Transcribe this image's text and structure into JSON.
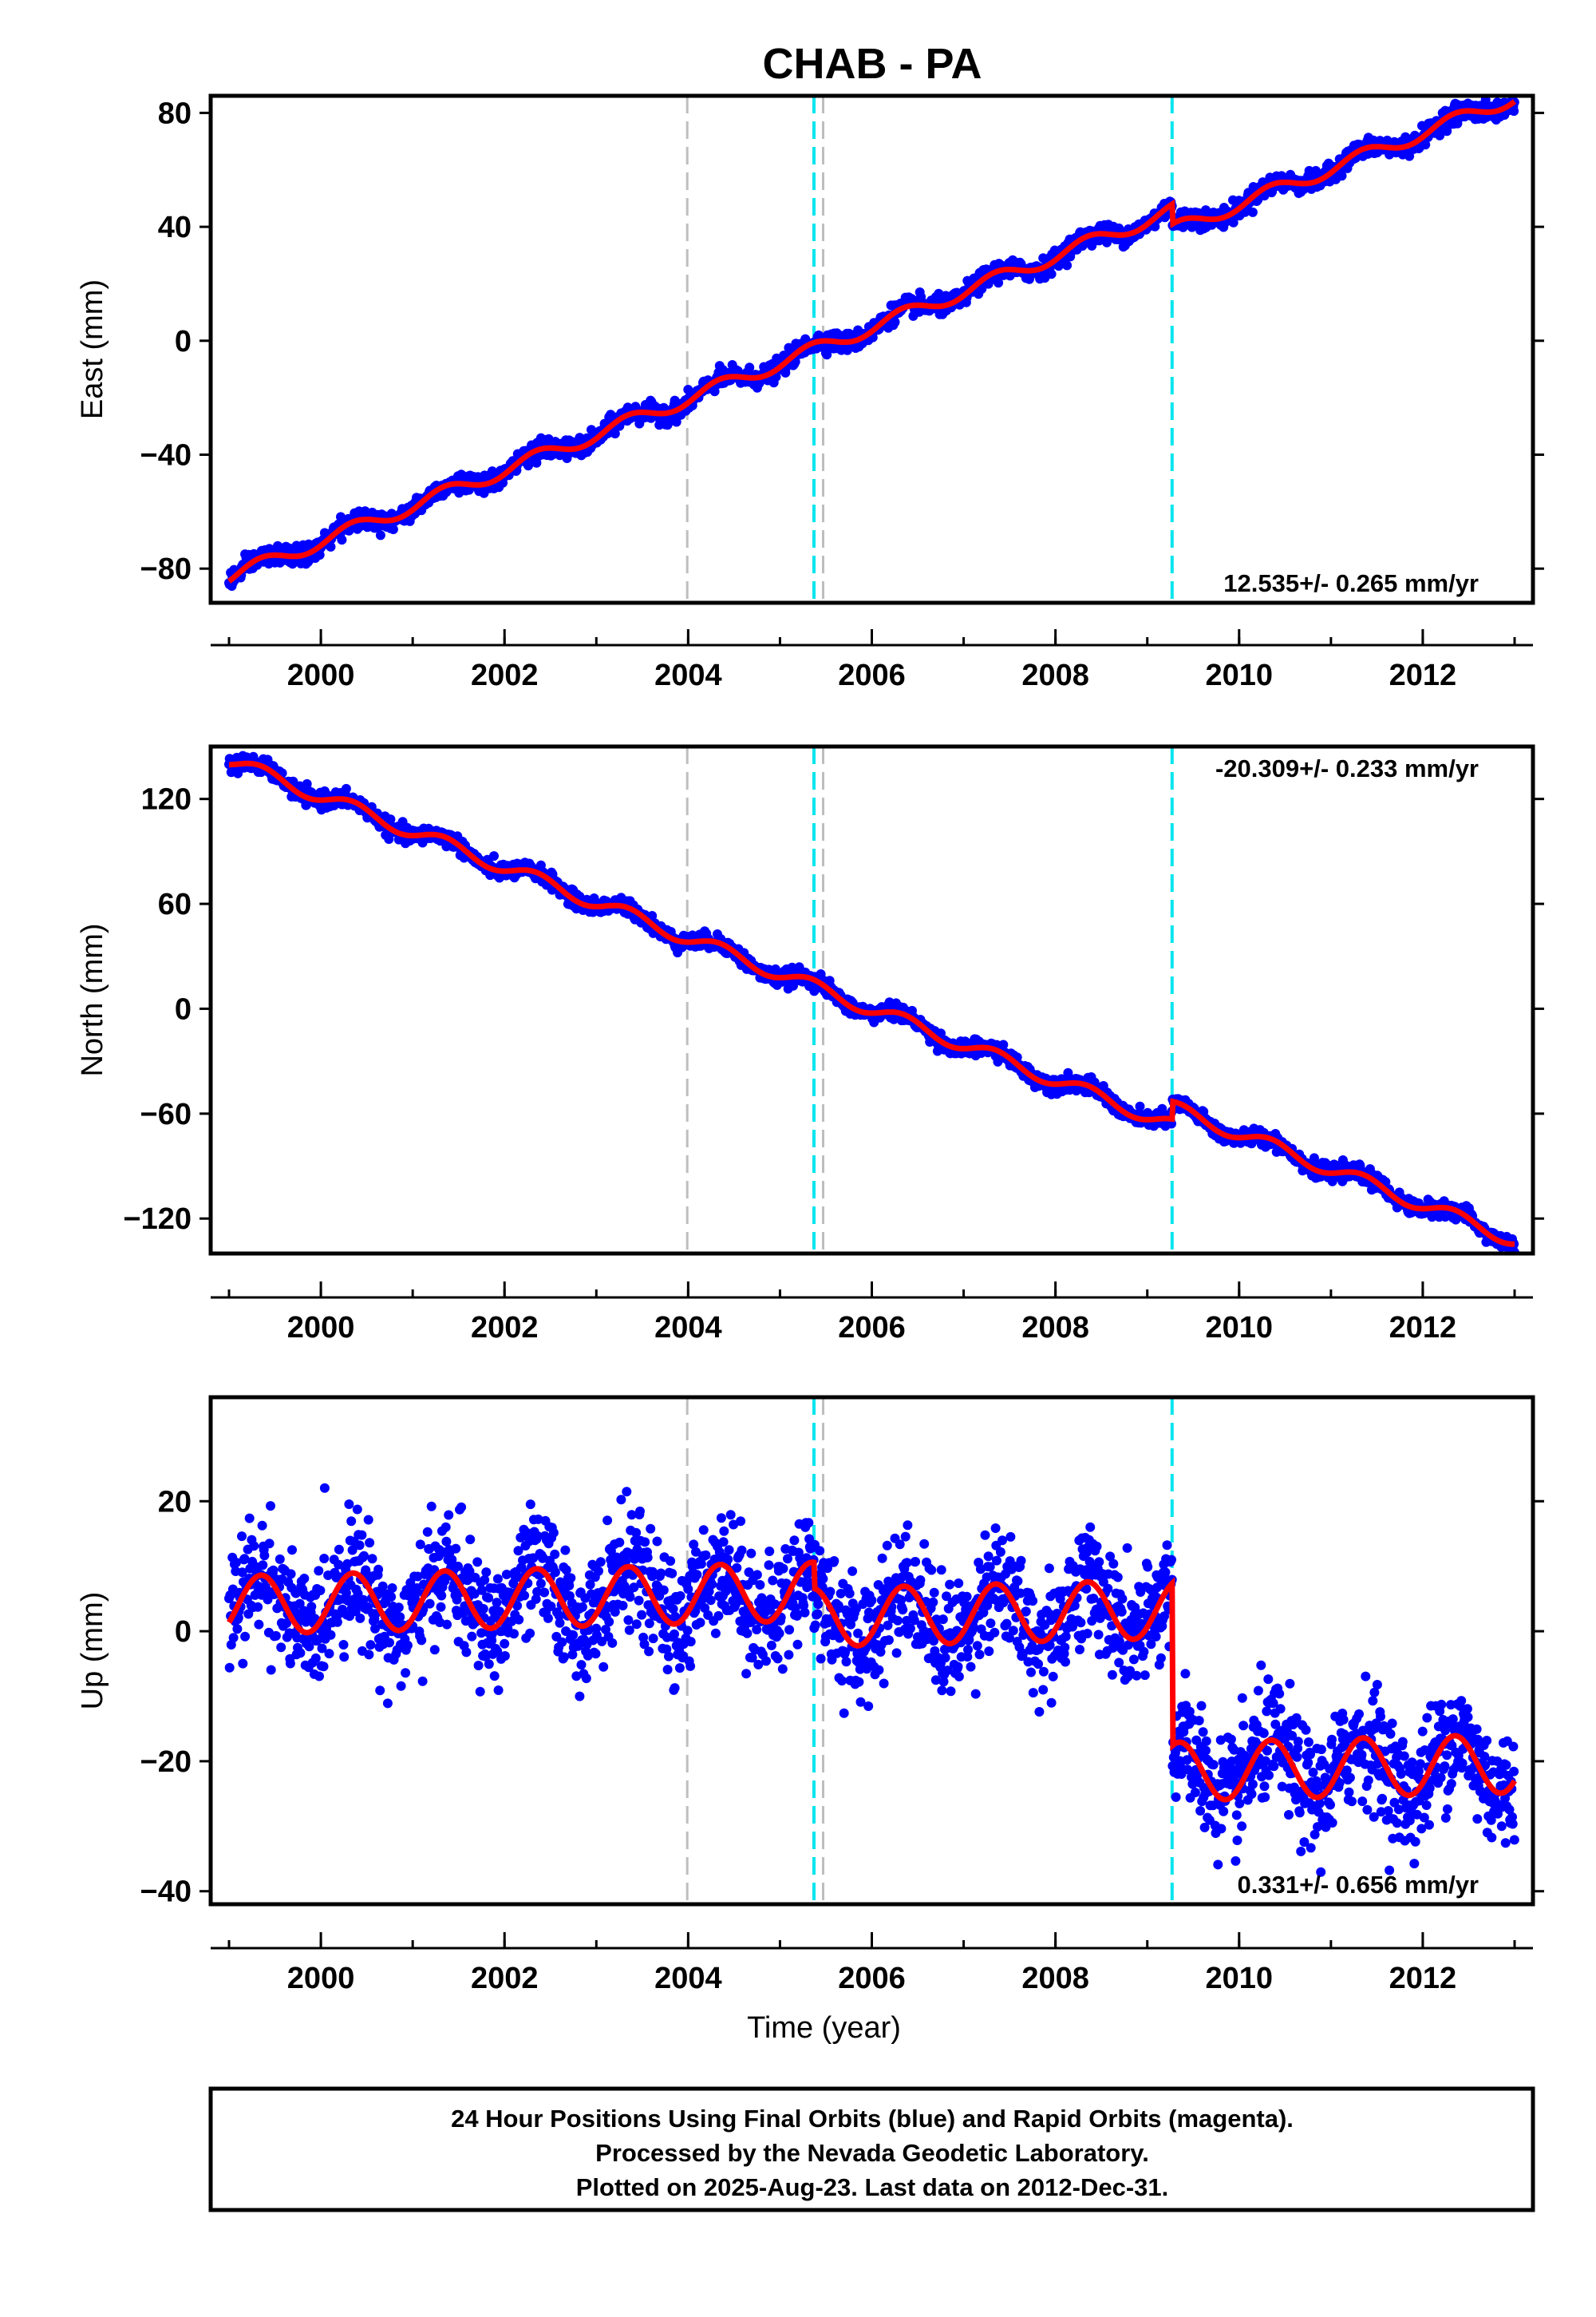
{
  "page": {
    "title": "CHAB - PA",
    "footer": [
      "24 Hour Positions Using Final Orbits (blue) and Rapid Orbits (magenta).",
      "Processed by the Nevada Geodetic Laboratory.",
      "Plotted on 2025-Aug-23. Last data on 2012-Dec-31."
    ]
  },
  "colors": {
    "data": "#0000ff",
    "model": "#ff0000",
    "equipment_change": "#00e5ee",
    "other_event": "#bebebe",
    "frame": "#000000"
  },
  "chart_data": [
    {
      "type": "scatter",
      "name": "east",
      "ylabel": "East (mm)",
      "xlabel": "",
      "xlim": [
        1998.8,
        2013.2
      ],
      "ylim": [
        -92,
        86
      ],
      "x_ticks": [
        2000,
        2002,
        2004,
        2006,
        2008,
        2010,
        2012
      ],
      "y_ticks": [
        -80,
        -40,
        0,
        40,
        80
      ],
      "rate_label": "12.535+/- 0.265 mm/yr",
      "rate_position": "bottom-right",
      "data_range": [
        1999.0,
        2013.0
      ],
      "model": {
        "start": 1999.0,
        "start_value": -83,
        "rate": 12.535,
        "annual_amplitude": 2.5,
        "offsets": [
          {
            "at": 2009.27,
            "size": -7
          }
        ]
      },
      "scatter_sigma": 1.6,
      "events": [
        {
          "x": 2003.99,
          "kind": "other_event"
        },
        {
          "x": 2005.37,
          "kind": "equipment_change"
        },
        {
          "x": 2005.47,
          "kind": "other_event"
        },
        {
          "x": 2009.27,
          "kind": "equipment_change"
        }
      ]
    },
    {
      "type": "scatter",
      "name": "north",
      "ylabel": "North (mm)",
      "xlabel": "",
      "xlim": [
        1998.8,
        2013.2
      ],
      "ylim": [
        -140,
        150
      ],
      "x_ticks": [
        2000,
        2002,
        2004,
        2006,
        2008,
        2010,
        2012
      ],
      "y_ticks": [
        -120,
        -60,
        0,
        60,
        120
      ],
      "rate_label": "-20.309+/- 0.233 mm/yr",
      "rate_position": "top-right",
      "data_range": [
        1999.0,
        2013.0
      ],
      "model": {
        "start": 1999.0,
        "start_value": 142,
        "rate": -20.309,
        "annual_amplitude": 4,
        "offsets": [
          {
            "at": 2009.27,
            "size": 10
          }
        ]
      },
      "scatter_sigma": 2.2,
      "events": [
        {
          "x": 2003.99,
          "kind": "other_event"
        },
        {
          "x": 2005.37,
          "kind": "equipment_change"
        },
        {
          "x": 2005.47,
          "kind": "other_event"
        },
        {
          "x": 2009.27,
          "kind": "equipment_change"
        }
      ]
    },
    {
      "type": "scatter",
      "name": "up",
      "ylabel": "Up (mm)",
      "xlabel": "Time (year)",
      "xlim": [
        1998.8,
        2013.2
      ],
      "ylim": [
        -42,
        36
      ],
      "x_ticks": [
        2000,
        2002,
        2004,
        2006,
        2008,
        2010,
        2012
      ],
      "y_ticks": [
        -40,
        -20,
        0,
        20
      ],
      "rate_label": "0.331+/- 0.656 mm/yr",
      "rate_position": "bottom-right",
      "data_range": [
        1999.0,
        2013.0
      ],
      "model": {
        "start": 1999.0,
        "start_value": 4,
        "rate": 0.331,
        "annual_amplitude": 4.5,
        "offsets": [
          {
            "at": 2005.37,
            "size": -4
          },
          {
            "at": 2009.27,
            "size": -25
          }
        ]
      },
      "scatter_sigma": 4.5,
      "events": [
        {
          "x": 2003.99,
          "kind": "other_event"
        },
        {
          "x": 2005.37,
          "kind": "equipment_change"
        },
        {
          "x": 2005.47,
          "kind": "other_event"
        },
        {
          "x": 2009.27,
          "kind": "equipment_change"
        }
      ]
    }
  ]
}
